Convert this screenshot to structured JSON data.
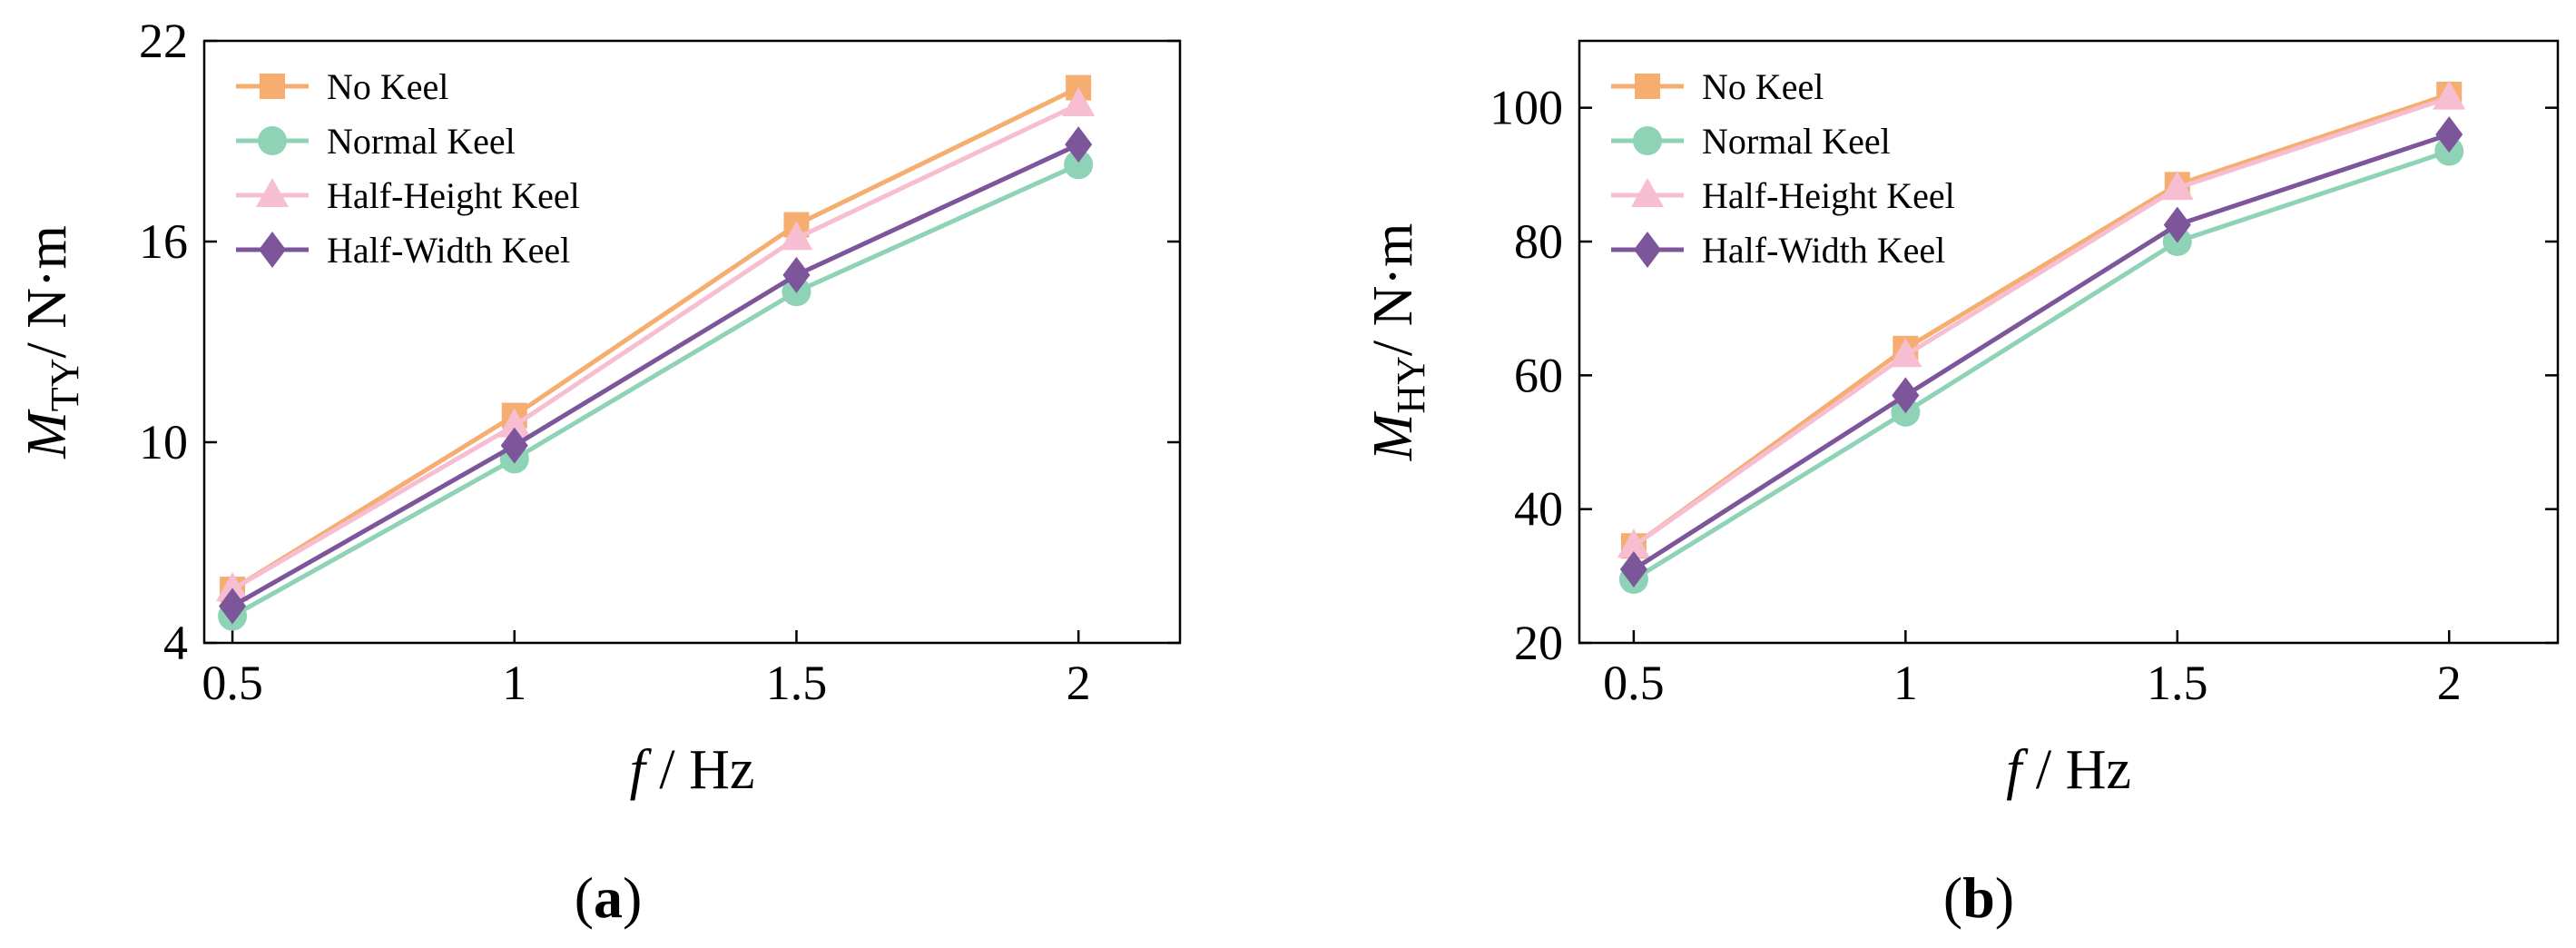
{
  "colors": {
    "no_keel": "#F5AD70",
    "normal_keel": "#8ED3B5",
    "half_height_keel": "#F7BDD0",
    "half_width_keel": "#7C559B"
  },
  "chart_data": [
    {
      "type": "line",
      "panel_label": "a",
      "x": [
        0.5,
        1,
        1.5,
        2
      ],
      "xticks": [
        "0.5",
        "1",
        "1.5",
        "2"
      ],
      "xlim": [
        0.45,
        2.18
      ],
      "ylim": [
        4,
        22
      ],
      "yticks": [
        "4",
        "10",
        "16",
        "22"
      ],
      "ytick_values": [
        4,
        10,
        16,
        22
      ],
      "xlabel": {
        "var": "f",
        "unit": "/ Hz"
      },
      "ylabel": {
        "var": "M",
        "sub": "TY",
        "unit": "/ N·m"
      },
      "grid": false,
      "legend_position": "upper-left",
      "series": [
        {
          "name": "No Keel",
          "marker": "square",
          "color_key": "no_keel",
          "values": [
            5.6,
            10.8,
            16.5,
            20.6
          ]
        },
        {
          "name": "Normal Keel",
          "marker": "circle",
          "color_key": "normal_keel",
          "values": [
            4.8,
            9.5,
            14.5,
            18.3
          ]
        },
        {
          "name": "Half-Height Keel",
          "marker": "triangle",
          "color_key": "half_height_keel",
          "values": [
            5.6,
            10.5,
            16.1,
            20.1
          ]
        },
        {
          "name": "Half-Width Keel",
          "marker": "diamond",
          "color_key": "half_width_keel",
          "values": [
            5.1,
            9.9,
            15.0,
            18.9
          ]
        }
      ]
    },
    {
      "type": "line",
      "panel_label": "b",
      "x": [
        0.5,
        1,
        1.5,
        2
      ],
      "xticks": [
        "0.5",
        "1",
        "1.5",
        "2"
      ],
      "xlim": [
        0.4,
        2.2
      ],
      "ylim": [
        20,
        110
      ],
      "yticks": [
        "20",
        "40",
        "60",
        "80",
        "100"
      ],
      "ytick_values": [
        20,
        40,
        60,
        80,
        100
      ],
      "xlabel": {
        "var": "f",
        "unit": "/ Hz"
      },
      "ylabel": {
        "var": "M",
        "sub": "HY",
        "unit": "/ N·m"
      },
      "grid": false,
      "legend_position": "upper-left",
      "series": [
        {
          "name": "No Keel",
          "marker": "square",
          "color_key": "no_keel",
          "values": [
            34.5,
            64,
            88.5,
            102
          ]
        },
        {
          "name": "Normal Keel",
          "marker": "circle",
          "color_key": "normal_keel",
          "values": [
            29.5,
            54.5,
            80,
            93.5
          ]
        },
        {
          "name": "Half-Height Keel",
          "marker": "triangle",
          "color_key": "half_height_keel",
          "values": [
            34.5,
            63,
            88,
            101.5
          ]
        },
        {
          "name": "Half-Width Keel",
          "marker": "diamond",
          "color_key": "half_width_keel",
          "values": [
            31,
            57,
            82.5,
            96
          ]
        }
      ]
    }
  ]
}
